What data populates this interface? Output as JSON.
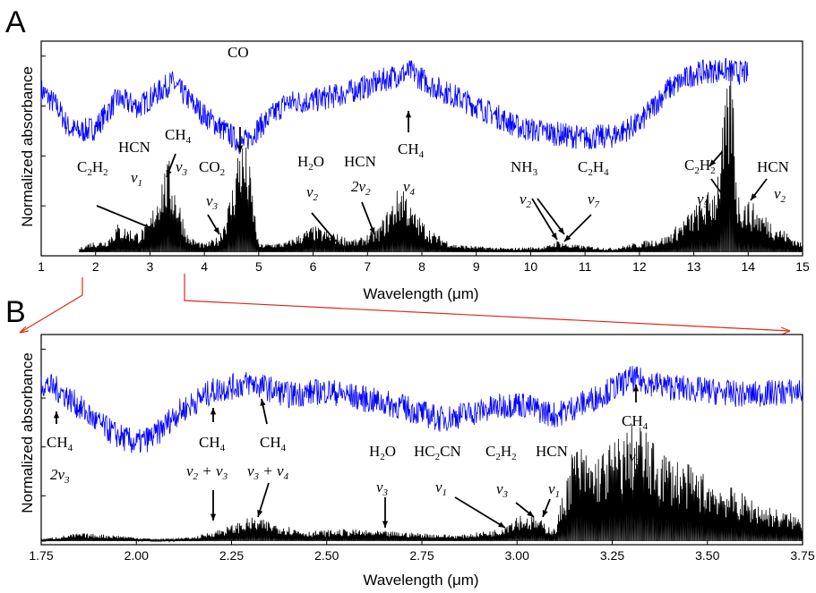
{
  "chart_data": [
    {
      "panel": "A",
      "type": "line",
      "xlabel": "Wavelength (μm)",
      "ylabel": "Normalized absorbance",
      "xlim": [
        1,
        15
      ],
      "xticks": [
        1,
        2,
        3,
        4,
        5,
        6,
        7,
        8,
        9,
        10,
        11,
        12,
        13,
        14,
        15
      ],
      "xtick_labels": [
        "1",
        "2",
        "3",
        "4",
        "5",
        "6",
        "7",
        "8",
        "9",
        "10",
        "11",
        "12",
        "13",
        "14",
        "15"
      ],
      "grid": false,
      "series": [
        {
          "color": "#0000ff",
          "style": "noisy upper trace",
          "x": [
            1.0,
            1.3,
            1.5,
            1.7,
            2.0,
            2.4,
            2.8,
            3.1,
            3.4,
            3.7,
            4.0,
            4.3,
            4.7,
            5.0,
            5.5,
            6.0,
            6.5,
            7.0,
            7.5,
            7.8,
            8.2,
            8.7,
            9.2,
            9.8,
            10.5,
            11.0,
            11.5,
            12.0,
            12.5,
            13.0,
            13.5,
            14.0
          ],
          "y": [
            0.78,
            0.7,
            0.6,
            0.58,
            0.6,
            0.74,
            0.7,
            0.76,
            0.82,
            0.74,
            0.66,
            0.6,
            0.52,
            0.6,
            0.72,
            0.73,
            0.76,
            0.8,
            0.85,
            0.87,
            0.8,
            0.74,
            0.68,
            0.6,
            0.57,
            0.55,
            0.56,
            0.62,
            0.78,
            0.86,
            0.88,
            0.86
          ]
        },
        {
          "color": "#000000",
          "style": "absorption bands lower trace",
          "x": [
            1.7,
            1.9,
            2.2,
            2.4,
            2.6,
            2.8,
            3.0,
            3.2,
            3.35,
            3.5,
            3.7,
            4.0,
            4.27,
            4.5,
            4.65,
            4.8,
            5.0,
            5.5,
            6.0,
            6.3,
            6.8,
            7.2,
            7.5,
            7.65,
            7.8,
            8.2,
            8.6,
            9.0,
            9.6,
            10.3,
            10.5,
            10.7,
            11.5,
            12.5,
            13.0,
            13.4,
            13.7,
            13.8,
            14.0,
            14.5,
            15.0
          ],
          "y": [
            0.02,
            0.05,
            0.06,
            0.14,
            0.12,
            0.1,
            0.16,
            0.38,
            0.45,
            0.3,
            0.08,
            0.04,
            0.08,
            0.3,
            0.58,
            0.5,
            0.04,
            0.05,
            0.13,
            0.1,
            0.06,
            0.12,
            0.28,
            0.36,
            0.22,
            0.1,
            0.04,
            0.03,
            0.02,
            0.03,
            0.06,
            0.04,
            0.02,
            0.08,
            0.22,
            0.34,
            0.98,
            0.3,
            0.26,
            0.14,
            0.04
          ]
        }
      ],
      "annotations": [
        "CO",
        "HCN",
        "CH4",
        "C2H2",
        "v1",
        "v3",
        "CO2",
        "v3",
        "H2O",
        "v2",
        "HCN",
        "2v2",
        "CH4",
        "v4",
        "NH3",
        "v2",
        "C2H4",
        "v7",
        "C2H2",
        "v5",
        "HCN",
        "v2"
      ]
    },
    {
      "panel": "B",
      "type": "line",
      "xlabel": "Wavelength (μm)",
      "ylabel": "Normalized absorbance",
      "xlim": [
        1.75,
        3.75
      ],
      "xticks": [
        1.75,
        2.0,
        2.25,
        2.5,
        2.75,
        3.0,
        3.25,
        3.5,
        3.75
      ],
      "xtick_labels": [
        "1.75",
        "2.00",
        "2.25",
        "2.50",
        "2.75",
        "3.00",
        "3.25",
        "3.50",
        "3.75"
      ],
      "grid": false,
      "series": [
        {
          "color": "#0000ff",
          "style": "noisy upper trace",
          "x": [
            1.75,
            1.8,
            1.85,
            1.9,
            1.95,
            2.0,
            2.05,
            2.1,
            2.2,
            2.3,
            2.4,
            2.5,
            2.6,
            2.7,
            2.8,
            2.9,
            3.0,
            3.1,
            3.2,
            3.3,
            3.4,
            3.5,
            3.6,
            3.75
          ],
          "y": [
            0.78,
            0.74,
            0.66,
            0.58,
            0.52,
            0.48,
            0.52,
            0.62,
            0.74,
            0.78,
            0.72,
            0.74,
            0.7,
            0.66,
            0.6,
            0.64,
            0.68,
            0.62,
            0.7,
            0.8,
            0.76,
            0.74,
            0.72,
            0.74
          ]
        },
        {
          "color": "#000000",
          "style": "absorption bands lower trace",
          "x": [
            1.75,
            1.85,
            1.95,
            2.05,
            2.15,
            2.25,
            2.3,
            2.35,
            2.45,
            2.55,
            2.65,
            2.75,
            2.85,
            2.95,
            3.0,
            3.05,
            3.1,
            3.15,
            3.2,
            3.3,
            3.32,
            3.35,
            3.45,
            3.55,
            3.65,
            3.75
          ],
          "y": [
            0.01,
            0.04,
            0.03,
            0.01,
            0.02,
            0.08,
            0.12,
            0.1,
            0.05,
            0.06,
            0.05,
            0.04,
            0.03,
            0.06,
            0.14,
            0.12,
            0.06,
            0.5,
            0.42,
            0.58,
            0.62,
            0.5,
            0.38,
            0.28,
            0.18,
            0.12
          ]
        }
      ],
      "annotations": [
        "CH4",
        "2v3",
        "CH4",
        "CH4",
        "v2 + v3",
        "v3 + v4",
        "H2O",
        "v3",
        "HC2CN",
        "v1",
        "C2H2",
        "v3",
        "HCN",
        "v1",
        "v3",
        "CH4"
      ]
    }
  ],
  "panels": {
    "A": "A",
    "B": "B"
  },
  "colors": {
    "blue_trace": "#0000ff",
    "black_trace": "#000000",
    "zoom_lines": "#dd2a1b"
  }
}
